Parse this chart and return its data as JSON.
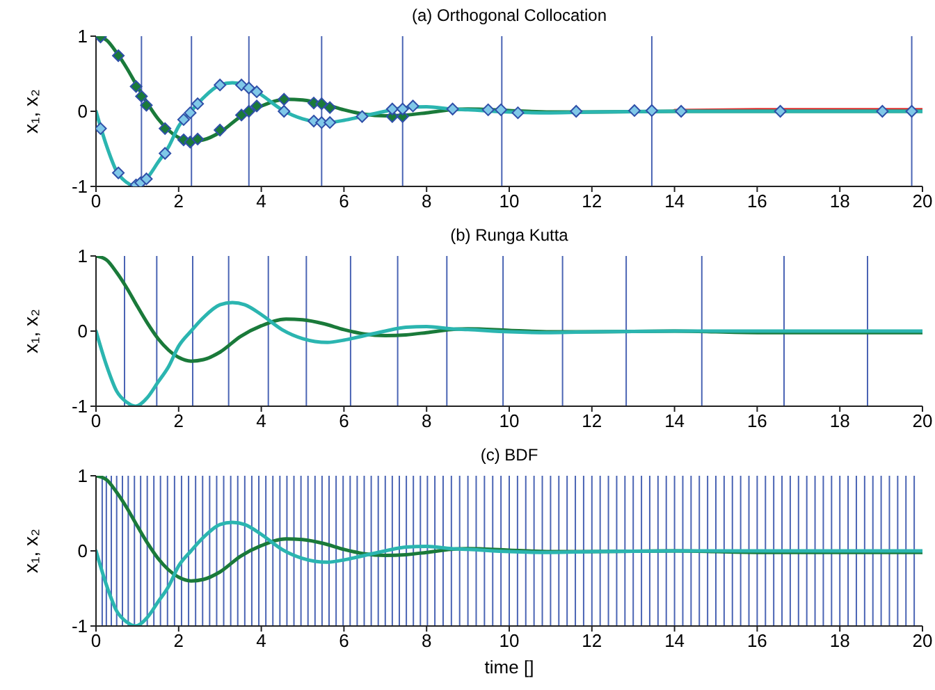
{
  "chart_data": [
    {
      "type": "line",
      "title": "(a) Orthogonal Collocation",
      "ylabel": "x₁, x₂",
      "xlim": [
        0,
        20
      ],
      "xticks": [
        0,
        2,
        4,
        6,
        8,
        10,
        12,
        14,
        16,
        18,
        20
      ],
      "ylim": [
        -1,
        1
      ],
      "yticks": [
        -1,
        0,
        1
      ],
      "marker": "none",
      "line_style": "solid",
      "series": [
        {
          "color": "#e03030",
          "x": [
            14,
            16,
            18,
            20
          ],
          "values": [
            0.01,
            0.02,
            0.02,
            0.02
          ]
        },
        {
          "color": "#1a7a3a",
          "x": [
            0,
            0.25,
            0.5,
            0.75,
            1,
            1.25,
            1.5,
            1.75,
            2,
            2.3,
            2.6,
            3,
            3.5,
            4,
            4.6,
            5,
            5.5,
            6,
            6.5,
            7,
            7.5,
            8,
            8.6,
            9,
            10,
            11,
            12,
            14,
            16,
            18,
            20
          ],
          "values": [
            1,
            0.95,
            0.78,
            0.57,
            0.33,
            0.1,
            -0.1,
            -0.25,
            -0.35,
            -0.4,
            -0.38,
            -0.28,
            -0.07,
            0.07,
            0.16,
            0.15,
            0.1,
            0.02,
            -0.04,
            -0.06,
            -0.05,
            -0.02,
            0.02,
            0.03,
            0.01,
            -0.01,
            -0.01,
            0,
            0,
            0,
            0
          ]
        },
        {
          "color": "#2bb5b0",
          "x": [
            0,
            0.25,
            0.5,
            0.75,
            0.95,
            1.25,
            1.5,
            1.75,
            2,
            2.3,
            2.6,
            3,
            3.3,
            3.6,
            4,
            4.5,
            5,
            5.6,
            6,
            6.5,
            7,
            7.5,
            8,
            8.6,
            9,
            10,
            11,
            12,
            14,
            16,
            18,
            20
          ],
          "values": [
            0,
            -0.45,
            -0.8,
            -0.95,
            -1,
            -0.88,
            -0.68,
            -0.48,
            -0.2,
            0,
            0.18,
            0.35,
            0.38,
            0.35,
            0.22,
            0.02,
            -0.1,
            -0.15,
            -0.12,
            -0.06,
            0,
            0.05,
            0.06,
            0.03,
            0.02,
            -0.01,
            -0.02,
            -0.01,
            0,
            0,
            0,
            0
          ]
        },
        {
          "type": "scatter",
          "marker": "diamond",
          "color": "#1a7a3a",
          "x": [
            0.11,
            0.54,
            0.97,
            1.1,
            1.22,
            1.67,
            2.12,
            2.28,
            2.46,
            3,
            3.52,
            3.7,
            3.89,
            4.55,
            5.27,
            5.46,
            5.66,
            6.44,
            7.17,
            7.42
          ],
          "values": [
            0.99,
            0.74,
            0.33,
            0.2,
            0.08,
            -0.23,
            -0.38,
            -0.41,
            -0.37,
            -0.25,
            -0.05,
            0,
            0.07,
            0.16,
            0.11,
            0.1,
            0.05,
            null,
            -0.07,
            -0.07
          ]
        },
        {
          "type": "scatter",
          "marker": "diamond",
          "color": "#80c8e8",
          "x": [
            0.11,
            0.54,
            0.97,
            1.08,
            1.22,
            1.67,
            2.12,
            2.28,
            2.46,
            3,
            3.52,
            3.7,
            3.89,
            4.55,
            5.27,
            5.46,
            5.66,
            6.44,
            7.17,
            7.42,
            7.67,
            8.63,
            9.49,
            9.8,
            10.21,
            11.62,
            13.03,
            13.45,
            14.16,
            16.56,
            19.03,
            19.74
          ],
          "values": [
            -0.23,
            -0.82,
            -0.98,
            -0.95,
            -0.9,
            -0.56,
            -0.11,
            -0.02,
            0.1,
            0.35,
            0.35,
            0.31,
            0.26,
            0,
            -0.13,
            -0.15,
            -0.15,
            -0.07,
            0.03,
            0.03,
            0.07,
            0.03,
            0.02,
            0.02,
            -0.02,
            0,
            0.01,
            0.01,
            0,
            0,
            0,
            0
          ]
        }
      ],
      "ref_lines": [
        {
          "axis": "x",
          "value": 1.1,
          "color": "#4a64b4"
        },
        {
          "axis": "x",
          "value": 2.31,
          "color": "#4a64b4"
        },
        {
          "axis": "x",
          "value": 3.7,
          "color": "#4a64b4"
        },
        {
          "axis": "x",
          "value": 5.46,
          "color": "#4a64b4"
        },
        {
          "axis": "x",
          "value": 7.42,
          "color": "#4a64b4"
        },
        {
          "axis": "x",
          "value": 9.82,
          "color": "#4a64b4"
        },
        {
          "axis": "x",
          "value": 13.45,
          "color": "#4a64b4"
        },
        {
          "axis": "x",
          "value": 19.74,
          "color": "#4a64b4"
        }
      ]
    },
    {
      "type": "line",
      "title": "(b) Runga Kutta",
      "ylabel": "x₁, x₂",
      "xlim": [
        0,
        20
      ],
      "xticks": [
        0,
        2,
        4,
        6,
        8,
        10,
        12,
        14,
        16,
        18,
        20
      ],
      "ylim": [
        -1,
        1
      ],
      "yticks": [
        -1,
        0,
        1
      ],
      "marker": "none",
      "line_style": "solid",
      "series": [
        {
          "color": "#1a7a3a",
          "x": [
            0,
            0.25,
            0.5,
            0.75,
            1,
            1.25,
            1.5,
            1.75,
            2,
            2.3,
            2.6,
            3,
            3.5,
            4,
            4.6,
            5,
            5.5,
            6,
            6.5,
            7,
            7.5,
            8,
            8.6,
            9,
            10,
            11,
            12,
            14,
            16,
            18,
            20
          ],
          "values": [
            1,
            0.95,
            0.78,
            0.57,
            0.33,
            0.1,
            -0.1,
            -0.25,
            -0.35,
            -0.4,
            -0.38,
            -0.28,
            -0.07,
            0.07,
            0.16,
            0.15,
            0.1,
            0.02,
            -0.04,
            -0.06,
            -0.05,
            -0.02,
            0.02,
            0.03,
            0.01,
            -0.01,
            -0.01,
            0,
            -0.02,
            -0.02,
            -0.02
          ]
        },
        {
          "color": "#2bb5b0",
          "x": [
            0,
            0.25,
            0.5,
            0.75,
            0.95,
            1.25,
            1.5,
            1.75,
            2,
            2.3,
            2.6,
            3,
            3.3,
            3.6,
            4,
            4.5,
            5,
            5.6,
            6,
            6.5,
            7,
            7.5,
            8,
            8.6,
            9,
            10,
            11,
            12,
            14,
            16,
            18,
            20
          ],
          "values": [
            0,
            -0.45,
            -0.8,
            -0.95,
            -1,
            -0.88,
            -0.68,
            -0.48,
            -0.2,
            0,
            0.18,
            0.35,
            0.38,
            0.35,
            0.22,
            0.02,
            -0.1,
            -0.15,
            -0.12,
            -0.06,
            0,
            0.05,
            0.06,
            0.03,
            0.02,
            -0.01,
            -0.02,
            -0.01,
            0,
            0,
            0,
            0
          ]
        }
      ],
      "ref_lines": [
        {
          "axis": "x",
          "value": 0.69,
          "color": "#4a64b4"
        },
        {
          "axis": "x",
          "value": 1.47,
          "color": "#4a64b4"
        },
        {
          "axis": "x",
          "value": 2.34,
          "color": "#4a64b4"
        },
        {
          "axis": "x",
          "value": 3.21,
          "color": "#4a64b4"
        },
        {
          "axis": "x",
          "value": 4.17,
          "color": "#4a64b4"
        },
        {
          "axis": "x",
          "value": 5.09,
          "color": "#4a64b4"
        },
        {
          "axis": "x",
          "value": 6.16,
          "color": "#4a64b4"
        },
        {
          "axis": "x",
          "value": 7.3,
          "color": "#4a64b4"
        },
        {
          "axis": "x",
          "value": 8.49,
          "color": "#4a64b4"
        },
        {
          "axis": "x",
          "value": 9.85,
          "color": "#4a64b4"
        },
        {
          "axis": "x",
          "value": 11.29,
          "color": "#4a64b4"
        },
        {
          "axis": "x",
          "value": 12.83,
          "color": "#4a64b4"
        },
        {
          "axis": "x",
          "value": 14.66,
          "color": "#4a64b4"
        },
        {
          "axis": "x",
          "value": 16.65,
          "color": "#4a64b4"
        },
        {
          "axis": "x",
          "value": 18.67,
          "color": "#4a64b4"
        }
      ]
    },
    {
      "type": "line",
      "title": "(c) BDF",
      "xlabel": "time []",
      "ylabel": "x₁, x₂",
      "xlim": [
        0,
        20
      ],
      "xticks": [
        0,
        2,
        4,
        6,
        8,
        10,
        12,
        14,
        16,
        18,
        20
      ],
      "ylim": [
        -1,
        1
      ],
      "yticks": [
        -1,
        0,
        1
      ],
      "marker": "none",
      "line_style": "solid",
      "series": [
        {
          "color": "#1a7a3a",
          "x": [
            0,
            0.25,
            0.5,
            0.75,
            1,
            1.25,
            1.5,
            1.75,
            2,
            2.3,
            2.6,
            3,
            3.5,
            4,
            4.6,
            5,
            5.5,
            6,
            6.5,
            7,
            7.5,
            8,
            8.6,
            9,
            10,
            11,
            12,
            14,
            16,
            18,
            20
          ],
          "values": [
            1,
            0.95,
            0.78,
            0.57,
            0.33,
            0.1,
            -0.1,
            -0.25,
            -0.35,
            -0.4,
            -0.38,
            -0.28,
            -0.07,
            0.07,
            0.16,
            0.15,
            0.1,
            0.02,
            -0.04,
            -0.06,
            -0.05,
            -0.02,
            0.02,
            0.03,
            0.01,
            -0.01,
            -0.01,
            0,
            -0.02,
            -0.02,
            -0.02
          ]
        },
        {
          "color": "#2bb5b0",
          "x": [
            0,
            0.25,
            0.5,
            0.75,
            0.95,
            1.25,
            1.5,
            1.75,
            2,
            2.3,
            2.6,
            3,
            3.3,
            3.6,
            4,
            4.5,
            5,
            5.6,
            6,
            6.5,
            7,
            7.5,
            8,
            8.6,
            9,
            10,
            11,
            12,
            14,
            16,
            18,
            20
          ],
          "values": [
            0,
            -0.45,
            -0.8,
            -0.95,
            -1,
            -0.88,
            -0.68,
            -0.48,
            -0.2,
            0,
            0.18,
            0.35,
            0.38,
            0.35,
            0.22,
            0.02,
            -0.1,
            -0.15,
            -0.12,
            -0.06,
            0,
            0.05,
            0.06,
            0.03,
            0.02,
            -0.01,
            -0.02,
            -0.01,
            0,
            0,
            0,
            0
          ]
        }
      ],
      "ref_lines": [
        {
          "axis": "x",
          "value": 0.15,
          "color": "#4a64b4"
        },
        {
          "axis": "x",
          "value": 0.25,
          "color": "#4a64b4"
        },
        {
          "axis": "x",
          "value": 0.37,
          "color": "#4a64b4"
        },
        {
          "axis": "x",
          "value": 0.5,
          "color": "#4a64b4"
        },
        {
          "axis": "x",
          "value": 0.64,
          "color": "#4a64b4"
        },
        {
          "axis": "x",
          "value": 0.78,
          "color": "#4a64b4"
        },
        {
          "axis": "x",
          "value": 0.93,
          "color": "#4a64b4"
        },
        {
          "axis": "x",
          "value": 1.08,
          "color": "#4a64b4"
        },
        {
          "axis": "x",
          "value": 1.24,
          "color": "#4a64b4"
        },
        {
          "axis": "x",
          "value": 1.4,
          "color": "#4a64b4"
        },
        {
          "axis": "x",
          "value": 1.56,
          "color": "#4a64b4"
        },
        {
          "axis": "x",
          "value": 1.73,
          "color": "#4a64b4"
        },
        {
          "axis": "x",
          "value": 1.9,
          "color": "#4a64b4"
        },
        {
          "axis": "x",
          "value": 2.07,
          "color": "#4a64b4"
        },
        {
          "axis": "x",
          "value": 2.24,
          "color": "#4a64b4"
        },
        {
          "axis": "x",
          "value": 2.41,
          "color": "#4a64b4"
        },
        {
          "axis": "x",
          "value": 2.58,
          "color": "#4a64b4"
        },
        {
          "axis": "x",
          "value": 2.75,
          "color": "#4a64b4"
        },
        {
          "axis": "x",
          "value": 2.92,
          "color": "#4a64b4"
        },
        {
          "axis": "x",
          "value": 3.09,
          "color": "#4a64b4"
        },
        {
          "axis": "x",
          "value": 3.26,
          "color": "#4a64b4"
        },
        {
          "axis": "x",
          "value": 3.43,
          "color": "#4a64b4"
        },
        {
          "axis": "x",
          "value": 3.6,
          "color": "#4a64b4"
        },
        {
          "axis": "x",
          "value": 3.77,
          "color": "#4a64b4"
        },
        {
          "axis": "x",
          "value": 3.94,
          "color": "#4a64b4"
        },
        {
          "axis": "x",
          "value": 4.11,
          "color": "#4a64b4"
        },
        {
          "axis": "x",
          "value": 4.28,
          "color": "#4a64b4"
        },
        {
          "axis": "x",
          "value": 4.45,
          "color": "#4a64b4"
        },
        {
          "axis": "x",
          "value": 4.62,
          "color": "#4a64b4"
        },
        {
          "axis": "x",
          "value": 4.79,
          "color": "#4a64b4"
        },
        {
          "axis": "x",
          "value": 4.96,
          "color": "#4a64b4"
        },
        {
          "axis": "x",
          "value": 5.13,
          "color": "#4a64b4"
        },
        {
          "axis": "x",
          "value": 5.3,
          "color": "#4a64b4"
        },
        {
          "axis": "x",
          "value": 5.47,
          "color": "#4a64b4"
        },
        {
          "axis": "x",
          "value": 5.64,
          "color": "#4a64b4"
        },
        {
          "axis": "x",
          "value": 5.81,
          "color": "#4a64b4"
        },
        {
          "axis": "x",
          "value": 5.98,
          "color": "#4a64b4"
        },
        {
          "axis": "x",
          "value": 6.15,
          "color": "#4a64b4"
        },
        {
          "axis": "x",
          "value": 6.32,
          "color": "#4a64b4"
        },
        {
          "axis": "x",
          "value": 6.49,
          "color": "#4a64b4"
        },
        {
          "axis": "x",
          "value": 6.66,
          "color": "#4a64b4"
        },
        {
          "axis": "x",
          "value": 6.83,
          "color": "#4a64b4"
        },
        {
          "axis": "x",
          "value": 7,
          "color": "#4a64b4"
        },
        {
          "axis": "x",
          "value": 7.17,
          "color": "#4a64b4"
        },
        {
          "axis": "x",
          "value": 7.34,
          "color": "#4a64b4"
        },
        {
          "axis": "x",
          "value": 7.51,
          "color": "#4a64b4"
        },
        {
          "axis": "x",
          "value": 7.68,
          "color": "#4a64b4"
        },
        {
          "axis": "x",
          "value": 7.85,
          "color": "#4a64b4"
        },
        {
          "axis": "x",
          "value": 8.02,
          "color": "#4a64b4"
        },
        {
          "axis": "x",
          "value": 8.2,
          "color": "#4a64b4"
        },
        {
          "axis": "x",
          "value": 8.4,
          "color": "#4a64b4"
        },
        {
          "axis": "x",
          "value": 8.6,
          "color": "#4a64b4"
        },
        {
          "axis": "x",
          "value": 8.8,
          "color": "#4a64b4"
        },
        {
          "axis": "x",
          "value": 9,
          "color": "#4a64b4"
        },
        {
          "axis": "x",
          "value": 9.2,
          "color": "#4a64b4"
        },
        {
          "axis": "x",
          "value": 9.4,
          "color": "#4a64b4"
        },
        {
          "axis": "x",
          "value": 9.6,
          "color": "#4a64b4"
        },
        {
          "axis": "x",
          "value": 9.8,
          "color": "#4a64b4"
        },
        {
          "axis": "x",
          "value": 10,
          "color": "#4a64b4"
        },
        {
          "axis": "x",
          "value": 10.2,
          "color": "#4a64b4"
        },
        {
          "axis": "x",
          "value": 10.4,
          "color": "#4a64b4"
        },
        {
          "axis": "x",
          "value": 10.6,
          "color": "#4a64b4"
        },
        {
          "axis": "x",
          "value": 10.8,
          "color": "#4a64b4"
        },
        {
          "axis": "x",
          "value": 11,
          "color": "#4a64b4"
        },
        {
          "axis": "x",
          "value": 11.2,
          "color": "#4a64b4"
        },
        {
          "axis": "x",
          "value": 11.4,
          "color": "#4a64b4"
        },
        {
          "axis": "x",
          "value": 11.6,
          "color": "#4a64b4"
        },
        {
          "axis": "x",
          "value": 11.8,
          "color": "#4a64b4"
        },
        {
          "axis": "x",
          "value": 12,
          "color": "#4a64b4"
        },
        {
          "axis": "x",
          "value": 12.2,
          "color": "#4a64b4"
        },
        {
          "axis": "x",
          "value": 12.4,
          "color": "#4a64b4"
        },
        {
          "axis": "x",
          "value": 12.6,
          "color": "#4a64b4"
        },
        {
          "axis": "x",
          "value": 12.8,
          "color": "#4a64b4"
        },
        {
          "axis": "x",
          "value": 13,
          "color": "#4a64b4"
        },
        {
          "axis": "x",
          "value": 13.2,
          "color": "#4a64b4"
        },
        {
          "axis": "x",
          "value": 13.4,
          "color": "#4a64b4"
        },
        {
          "axis": "x",
          "value": 13.6,
          "color": "#4a64b4"
        },
        {
          "axis": "x",
          "value": 13.8,
          "color": "#4a64b4"
        },
        {
          "axis": "x",
          "value": 14,
          "color": "#4a64b4"
        },
        {
          "axis": "x",
          "value": 14.2,
          "color": "#4a64b4"
        },
        {
          "axis": "x",
          "value": 14.4,
          "color": "#4a64b4"
        },
        {
          "axis": "x",
          "value": 14.6,
          "color": "#4a64b4"
        },
        {
          "axis": "x",
          "value": 14.8,
          "color": "#4a64b4"
        },
        {
          "axis": "x",
          "value": 15,
          "color": "#4a64b4"
        },
        {
          "axis": "x",
          "value": 15.2,
          "color": "#4a64b4"
        },
        {
          "axis": "x",
          "value": 15.4,
          "color": "#4a64b4"
        },
        {
          "axis": "x",
          "value": 15.6,
          "color": "#4a64b4"
        },
        {
          "axis": "x",
          "value": 15.8,
          "color": "#4a64b4"
        },
        {
          "axis": "x",
          "value": 16,
          "color": "#4a64b4"
        },
        {
          "axis": "x",
          "value": 16.2,
          "color": "#4a64b4"
        },
        {
          "axis": "x",
          "value": 16.4,
          "color": "#4a64b4"
        },
        {
          "axis": "x",
          "value": 16.6,
          "color": "#4a64b4"
        },
        {
          "axis": "x",
          "value": 16.8,
          "color": "#4a64b4"
        },
        {
          "axis": "x",
          "value": 17,
          "color": "#4a64b4"
        },
        {
          "axis": "x",
          "value": 17.2,
          "color": "#4a64b4"
        },
        {
          "axis": "x",
          "value": 17.4,
          "color": "#4a64b4"
        },
        {
          "axis": "x",
          "value": 17.6,
          "color": "#4a64b4"
        },
        {
          "axis": "x",
          "value": 17.8,
          "color": "#4a64b4"
        },
        {
          "axis": "x",
          "value": 18,
          "color": "#4a64b4"
        },
        {
          "axis": "x",
          "value": 18.2,
          "color": "#4a64b4"
        },
        {
          "axis": "x",
          "value": 18.4,
          "color": "#4a64b4"
        },
        {
          "axis": "x",
          "value": 18.6,
          "color": "#4a64b4"
        },
        {
          "axis": "x",
          "value": 18.8,
          "color": "#4a64b4"
        },
        {
          "axis": "x",
          "value": 19,
          "color": "#4a64b4"
        },
        {
          "axis": "x",
          "value": 19.2,
          "color": "#4a64b4"
        },
        {
          "axis": "x",
          "value": 19.4,
          "color": "#4a64b4"
        },
        {
          "axis": "x",
          "value": 19.6,
          "color": "#4a64b4"
        },
        {
          "axis": "x",
          "value": 19.8,
          "color": "#4a64b4"
        }
      ]
    }
  ]
}
